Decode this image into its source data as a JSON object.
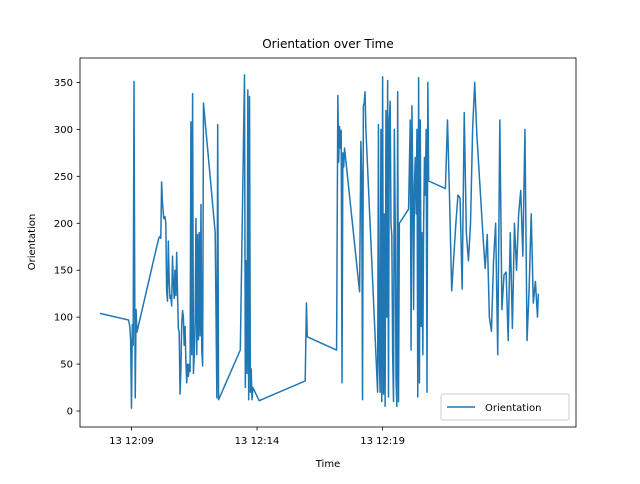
{
  "chart_data": {
    "type": "line",
    "title": "Orientation over Time",
    "xlabel": "Time",
    "ylabel": "Orientation",
    "x_ticks": [
      "13 12:09",
      "13 12:14",
      "13 12:19"
    ],
    "x_tick_times": [
      "12:09",
      "12:14",
      "12:19"
    ],
    "xlim": [
      "12:06:57",
      "12:26:42"
    ],
    "ylim": [
      -17,
      376
    ],
    "y_ticks": [
      0,
      50,
      100,
      150,
      200,
      250,
      300,
      350
    ],
    "grid": false,
    "legend_position": "lower-right",
    "series": [
      {
        "name": "Orientation",
        "color": "#1f77b4",
        "points": [
          [
            "12:07:45",
            104
          ],
          [
            "12:08:53",
            97
          ],
          [
            "12:08:56",
            90
          ],
          [
            "12:08:58",
            75
          ],
          [
            "12:09:00",
            3
          ],
          [
            "12:09:02",
            92
          ],
          [
            "12:09:04",
            70
          ],
          [
            "12:09:06",
            351
          ],
          [
            "12:09:08",
            103
          ],
          [
            "12:09:09",
            14
          ],
          [
            "12:09:11",
            108
          ],
          [
            "12:09:13",
            84
          ],
          [
            "12:10:05",
            184
          ],
          [
            "12:10:08",
            186
          ],
          [
            "12:10:10",
            184
          ],
          [
            "12:10:12",
            244
          ],
          [
            "12:10:14",
            222
          ],
          [
            "12:10:17",
            205
          ],
          [
            "12:10:20",
            207
          ],
          [
            "12:10:22",
            200
          ],
          [
            "12:10:24",
            128
          ],
          [
            "12:10:26",
            117
          ],
          [
            "12:10:28",
            181
          ],
          [
            "12:10:30",
            140
          ],
          [
            "12:10:32",
            120
          ],
          [
            "12:10:34",
            123
          ],
          [
            "12:10:36",
            112
          ],
          [
            "12:10:38",
            165
          ],
          [
            "12:10:40",
            136
          ],
          [
            "12:10:42",
            120
          ],
          [
            "12:10:44",
            150
          ],
          [
            "12:10:46",
            123
          ],
          [
            "12:10:48",
            169
          ],
          [
            "12:10:50",
            125
          ],
          [
            "12:10:52",
            88
          ],
          [
            "12:10:54",
            84
          ],
          [
            "12:10:56",
            18
          ],
          [
            "12:10:58",
            42
          ],
          [
            "12:11:00",
            92
          ],
          [
            "12:11:02",
            107
          ],
          [
            "12:11:04",
            100
          ],
          [
            "12:11:06",
            70
          ],
          [
            "12:11:08",
            90
          ],
          [
            "12:11:10",
            52
          ],
          [
            "12:11:12",
            30
          ],
          [
            "12:11:14",
            50
          ],
          [
            "12:11:16",
            37
          ],
          [
            "12:11:18",
            50
          ],
          [
            "12:11:20",
            42
          ],
          [
            "12:11:22",
            308
          ],
          [
            "12:11:24",
            60
          ],
          [
            "12:11:26",
            338
          ],
          [
            "12:11:28",
            40
          ],
          [
            "12:11:30",
            60
          ],
          [
            "12:11:32",
            95
          ],
          [
            "12:11:34",
            205
          ],
          [
            "12:11:36",
            60
          ],
          [
            "12:11:38",
            188
          ],
          [
            "12:11:40",
            76
          ],
          [
            "12:11:42",
            190
          ],
          [
            "12:11:44",
            80
          ],
          [
            "12:11:46",
            220
          ],
          [
            "12:11:48",
            65
          ],
          [
            "12:11:50",
            48
          ],
          [
            "12:11:52",
            328
          ],
          [
            "12:12:20",
            190
          ],
          [
            "12:12:24",
            14
          ],
          [
            "12:12:26",
            305
          ],
          [
            "12:12:28",
            12
          ],
          [
            "12:13:20",
            65
          ],
          [
            "12:13:30",
            358
          ],
          [
            "12:13:32",
            25
          ],
          [
            "12:13:34",
            160
          ],
          [
            "12:13:36",
            40
          ],
          [
            "12:13:38",
            342
          ],
          [
            "12:13:40",
            12
          ],
          [
            "12:13:42",
            335
          ],
          [
            "12:13:44",
            20
          ],
          [
            "12:13:46",
            45
          ],
          [
            "12:13:48",
            12
          ],
          [
            "12:13:50",
            25
          ],
          [
            "12:14:05",
            11
          ],
          [
            "12:15:55",
            32
          ],
          [
            "12:15:58",
            115
          ],
          [
            "12:16:00",
            79
          ],
          [
            "12:17:10",
            65
          ],
          [
            "12:17:13",
            336
          ],
          [
            "12:17:15",
            265
          ],
          [
            "12:17:17",
            303
          ],
          [
            "12:17:19",
            280
          ],
          [
            "12:17:21",
            299
          ],
          [
            "12:17:23",
            30
          ],
          [
            "12:17:25",
            275
          ],
          [
            "12:17:27",
            260
          ],
          [
            "12:17:29",
            280
          ],
          [
            "12:18:05",
            127
          ],
          [
            "12:18:08",
            287
          ],
          [
            "12:18:10",
            252
          ],
          [
            "12:18:12",
            12
          ],
          [
            "12:18:14",
            325
          ],
          [
            "12:18:16",
            328
          ],
          [
            "12:18:18",
            340
          ],
          [
            "12:18:20",
            300
          ],
          [
            "12:18:48",
            20
          ],
          [
            "12:18:50",
            305
          ],
          [
            "12:18:52",
            52
          ],
          [
            "12:18:54",
            20
          ],
          [
            "12:18:56",
            300
          ],
          [
            "12:18:58",
            10
          ],
          [
            "12:19:00",
            356
          ],
          [
            "12:19:02",
            18
          ],
          [
            "12:19:04",
            210
          ],
          [
            "12:19:06",
            5
          ],
          [
            "12:19:08",
            320
          ],
          [
            "12:19:10",
            100
          ],
          [
            "12:19:12",
            352
          ],
          [
            "12:19:14",
            15
          ],
          [
            "12:19:16",
            310
          ],
          [
            "12:19:18",
            330
          ],
          [
            "12:19:20",
            200
          ],
          [
            "12:19:22",
            187
          ],
          [
            "12:19:24",
            60
          ],
          [
            "12:19:26",
            10
          ],
          [
            "12:19:28",
            300
          ],
          [
            "12:19:30",
            208
          ],
          [
            "12:19:32",
            35
          ],
          [
            "12:19:34",
            5
          ],
          [
            "12:19:36",
            340
          ],
          [
            "12:19:38",
            10
          ],
          [
            "12:19:40",
            200
          ],
          [
            "12:20:02",
            215
          ],
          [
            "12:20:06",
            310
          ],
          [
            "12:20:08",
            65
          ],
          [
            "12:20:10",
            325
          ],
          [
            "12:20:12",
            245
          ],
          [
            "12:20:14",
            108
          ],
          [
            "12:20:16",
            240
          ],
          [
            "12:20:18",
            270
          ],
          [
            "12:20:20",
            210
          ],
          [
            "12:20:22",
            300
          ],
          [
            "12:20:24",
            15
          ],
          [
            "12:20:26",
            355
          ],
          [
            "12:20:28",
            30
          ],
          [
            "12:20:30",
            310
          ],
          [
            "12:20:32",
            90
          ],
          [
            "12:20:34",
            190
          ],
          [
            "12:20:36",
            60
          ],
          [
            "12:20:38",
            200
          ],
          [
            "12:20:40",
            270
          ],
          [
            "12:20:42",
            230
          ],
          [
            "12:20:44",
            300
          ],
          [
            "12:20:46",
            20
          ],
          [
            "12:20:48",
            350
          ],
          [
            "12:20:50",
            245
          ],
          [
            "12:21:30",
            237
          ],
          [
            "12:21:35",
            310
          ],
          [
            "12:21:40",
            225
          ],
          [
            "12:21:45",
            128
          ],
          [
            "12:21:55",
            200
          ],
          [
            "12:22:00",
            230
          ],
          [
            "12:22:05",
            227
          ],
          [
            "12:22:10",
            130
          ],
          [
            "12:22:15",
            318
          ],
          [
            "12:22:20",
            190
          ],
          [
            "12:22:25",
            160
          ],
          [
            "12:22:30",
            200
          ],
          [
            "12:22:35",
            300
          ],
          [
            "12:22:40",
            350
          ],
          [
            "12:22:45",
            295
          ],
          [
            "12:23:00",
            185
          ],
          [
            "12:23:05",
            152
          ],
          [
            "12:23:10",
            188
          ],
          [
            "12:23:15",
            100
          ],
          [
            "12:23:20",
            85
          ],
          [
            "12:23:25",
            160
          ],
          [
            "12:23:30",
            200
          ],
          [
            "12:23:35",
            60
          ],
          [
            "12:23:40",
            310
          ],
          [
            "12:23:45",
            108
          ],
          [
            "12:23:50",
            145
          ],
          [
            "12:23:55",
            148
          ],
          [
            "12:24:00",
            75
          ],
          [
            "12:24:05",
            190
          ],
          [
            "12:24:10",
            88
          ],
          [
            "12:24:15",
            200
          ],
          [
            "12:24:20",
            150
          ],
          [
            "12:24:25",
            210
          ],
          [
            "12:24:30",
            235
          ],
          [
            "12:24:35",
            165
          ],
          [
            "12:24:40",
            300
          ],
          [
            "12:24:45",
            75
          ],
          [
            "12:24:50",
            130
          ],
          [
            "12:24:55",
            210
          ],
          [
            "12:25:00",
            115
          ],
          [
            "12:25:05",
            138
          ],
          [
            "12:25:10",
            100
          ],
          [
            "12:25:12",
            125
          ]
        ]
      }
    ]
  }
}
